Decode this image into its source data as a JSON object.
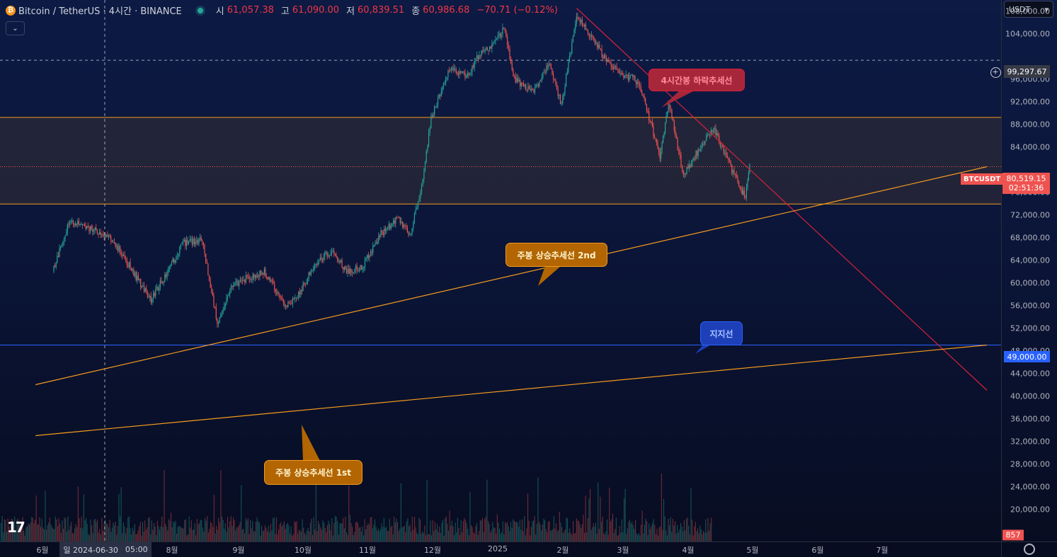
{
  "legend": {
    "symbol": "Bitcoin / TetherUS · 4시간 · BINANCE",
    "open_label": "시",
    "open": "61,057.38",
    "high_label": "고",
    "high": "61,090.00",
    "low_label": "저",
    "low": "60,839.51",
    "close_label": "종",
    "close": "60,986.68",
    "change": "−70.71 (−0.12%)"
  },
  "currency_selector": "USDT",
  "axis": {
    "y_ticks": [
      "108,000.00",
      "104,000.00",
      "96,000.00",
      "92,000.00",
      "88,000.00",
      "84,000.00",
      "76,000.00",
      "72,000.00",
      "68,000.00",
      "64,000.00",
      "60,000.00",
      "56,000.00",
      "52,000.00",
      "48,000.00",
      "44,000.00",
      "40,000.00",
      "36,000.00",
      "32,000.00",
      "28,000.00",
      "24,000.00",
      "20,000.00"
    ],
    "x_ticks": [
      "6월",
      "8월",
      "9월",
      "10월",
      "11월",
      "12월",
      "2025",
      "2월",
      "3월",
      "4월",
      "5월",
      "6월",
      "7월"
    ],
    "crosshair_date": "일 2024-06-30",
    "crosshair_time": "05:00"
  },
  "badges": {
    "crosshair_price": "99,297.67",
    "symbol_tag": "BTCUSDT",
    "last_price": "80,519.15",
    "countdown": "02:51:36",
    "support_price": "49,000.00",
    "volume": "857"
  },
  "callouts": {
    "down_trend": "4시간봉 하락추세선",
    "up_trend_2nd": "주봉 상승추세선 2nd",
    "support": "지지선",
    "up_trend_1st": "주봉 상승추세선 1st"
  },
  "colors": {
    "up": "#26a69a",
    "down": "#ef5350",
    "trend_up": "#f59b1d",
    "trend_down": "#d6213a",
    "support": "#2962ff",
    "range_band": "#f59b1d"
  },
  "chart_data": {
    "type": "line",
    "title": "Bitcoin / TetherUS · 4시간 · BINANCE",
    "xlabel": "",
    "ylabel": "",
    "ylim": [
      18000,
      110000
    ],
    "price_series": {
      "name": "BTCUSDT",
      "dates": [
        "2024-05-20",
        "2024-05-28",
        "2024-06-05",
        "2024-06-12",
        "2024-06-20",
        "2024-06-28",
        "2024-07-05",
        "2024-07-12",
        "2024-07-20",
        "2024-07-29",
        "2024-08-05",
        "2024-08-12",
        "2024-08-20",
        "2024-08-27",
        "2024-09-06",
        "2024-09-12",
        "2024-09-20",
        "2024-09-27",
        "2024-10-05",
        "2024-10-12",
        "2024-10-20",
        "2024-10-29",
        "2024-11-03",
        "2024-11-08",
        "2024-11-13",
        "2024-11-22",
        "2024-11-30",
        "2024-12-05",
        "2024-12-12",
        "2024-12-17",
        "2024-12-22",
        "2024-12-31",
        "2025-01-07",
        "2025-01-13",
        "2025-01-20",
        "2025-01-27",
        "2025-02-03",
        "2025-02-10",
        "2025-02-18",
        "2025-02-24",
        "2025-02-28",
        "2025-03-04",
        "2025-03-11",
        "2025-03-19",
        "2025-03-25",
        "2025-03-31",
        "2025-04-07",
        "2025-04-09",
        "2025-04-11"
      ],
      "values": [
        62000,
        71000,
        69500,
        69000,
        66000,
        61000,
        57000,
        61500,
        67000,
        67500,
        53000,
        59500,
        61000,
        62000,
        56000,
        58000,
        63500,
        65500,
        62000,
        63000,
        68500,
        71500,
        68000,
        76000,
        89000,
        98000,
        96500,
        100000,
        102000,
        105000,
        96000,
        93500,
        99000,
        91500,
        107000,
        103500,
        99000,
        97000,
        95500,
        88000,
        82000,
        92000,
        79000,
        84000,
        87500,
        82000,
        76500,
        75000,
        80500
      ]
    },
    "volume_peak": 857,
    "trendlines": [
      {
        "name": "4시간봉 하락추세선",
        "points": [
          [
            "2025-01-20",
            108500
          ],
          [
            "2025-07-31",
            41000
          ]
        ]
      },
      {
        "name": "주봉 상승추세선 2nd",
        "points": [
          [
            "2024-05-12",
            42000
          ],
          [
            "2025-07-31",
            80500
          ]
        ]
      },
      {
        "name": "주봉 상승추세선 1st",
        "points": [
          [
            "2024-05-12",
            33000
          ],
          [
            "2025-07-31",
            49000
          ]
        ]
      }
    ],
    "levels": [
      {
        "name": "지지선",
        "value": 49000
      },
      {
        "name": "range_top",
        "value": 89200
      },
      {
        "name": "range_bottom",
        "value": 73900
      },
      {
        "name": "crosshair",
        "value": 99297.67
      }
    ]
  }
}
